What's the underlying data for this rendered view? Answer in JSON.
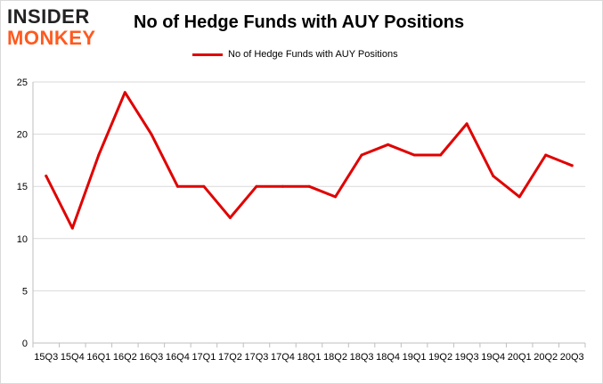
{
  "logo": {
    "line1": "INSIDER",
    "line2": "MONKEY"
  },
  "chart_data": {
    "type": "line",
    "title": "No of Hedge Funds with AUY Positions",
    "xlabel": "",
    "ylabel": "",
    "ylim": [
      0,
      25
    ],
    "yticks": [
      0,
      5,
      10,
      15,
      20,
      25
    ],
    "grid": true,
    "legend_position": "top-center",
    "categories": [
      "2015Q3",
      "2015Q4",
      "2016Q1",
      "2016Q2",
      "2016Q3",
      "2016Q4",
      "2017Q1",
      "2017Q2",
      "2017Q3",
      "2017Q4",
      "2018Q1",
      "2018Q2",
      "2018Q3",
      "2018Q4",
      "2019Q1",
      "2019Q2",
      "2019Q3",
      "2019Q4",
      "2020Q1",
      "2020Q2",
      "2020Q3"
    ],
    "tick_labels": [
      "15Q3",
      "15Q4",
      "16Q1",
      "16Q2",
      "16Q3",
      "16Q4",
      "17Q1",
      "17Q2",
      "17Q3",
      "17Q4",
      "18Q1",
      "18Q2",
      "18Q3",
      "18Q4",
      "19Q1",
      "19Q2",
      "19Q3",
      "19Q4",
      "20Q1",
      "20Q2",
      "20Q3"
    ],
    "series": [
      {
        "name": "No of Hedge Funds with AUY Positions",
        "color": "#e00000",
        "values": [
          16,
          11,
          18,
          24,
          20,
          15,
          15,
          12,
          15,
          15,
          15,
          14,
          18,
          19,
          18,
          18,
          21,
          16,
          14,
          18,
          17
        ]
      }
    ]
  }
}
